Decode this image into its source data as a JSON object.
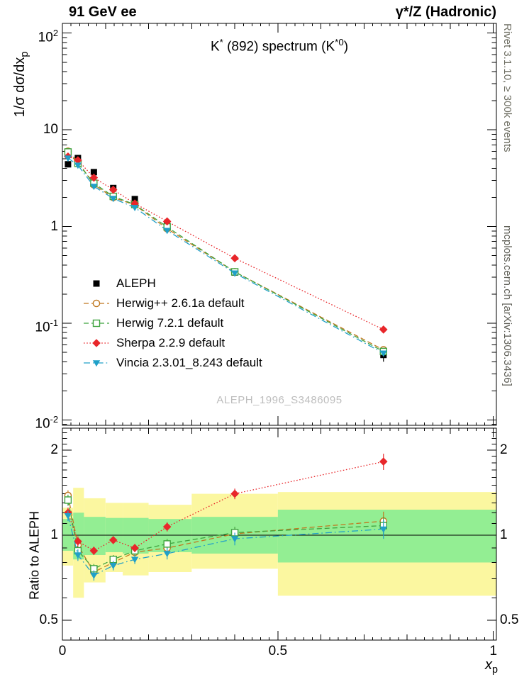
{
  "header": {
    "left": "91 GeV ee",
    "right": "γ*/Z (Hadronic)"
  },
  "panel_title": {
    "pre": "K",
    "sup1": "*",
    "mid": " (892) spectrum (K",
    "sup2": "*0",
    "post": ")"
  },
  "watermark": "ALEPH_1996_S3486095",
  "side_texts": {
    "top": "Rivet 3.1.10, ≥ 300k events",
    "bottom": "mcplots.cern.ch [arXiv:1306.3436]"
  },
  "axes": {
    "y_top_label": {
      "pre": "1/σ dσ/dx",
      "sub": "p"
    },
    "y_bottom_label": "Ratio to ALEPH",
    "x_label": {
      "pre": "x",
      "sub": "p"
    },
    "x_ticks": [
      {
        "v": 0,
        "label": "0"
      },
      {
        "v": 0.5,
        "label": "0.5"
      },
      {
        "v": 1,
        "label": "1"
      }
    ],
    "y_top_ticks": [
      {
        "v": 100,
        "base": "10",
        "exp": "2"
      },
      {
        "v": 10,
        "base": "10",
        "exp": ""
      },
      {
        "v": 1,
        "base": "1",
        "exp": ""
      },
      {
        "v": 0.1,
        "base": "10",
        "exp": "-1"
      },
      {
        "v": 0.01,
        "base": "10",
        "exp": "-2"
      }
    ],
    "y_bottom_ticks": [
      {
        "v": 2,
        "label": "2"
      },
      {
        "v": 1,
        "label": "1"
      },
      {
        "v": 0.5,
        "label": "0.5"
      }
    ]
  },
  "chart_data": [
    {
      "id": "spectrum",
      "type": "line",
      "title": "K*(892) spectrum (K*0)",
      "xlabel": "x_p",
      "ylabel": "1/σ dσ/dx_p",
      "x_range": [
        0,
        1.007
      ],
      "y_range": [
        0.0088,
        126
      ],
      "y_scale": "log",
      "legend_position": "middle-left",
      "grid": false,
      "x": [
        0.013,
        0.036,
        0.073,
        0.118,
        0.168,
        0.243,
        0.4,
        0.745
      ],
      "series": [
        {
          "name": "ALEPH",
          "marker": "square-filled",
          "color": "#000000",
          "line": "none",
          "values": [
            4.4,
            5.1,
            3.65,
            2.5,
            1.92,
            1.06,
            0.335,
            0.047
          ],
          "yerr": [
            0.3,
            0.25,
            0.18,
            0.12,
            0.1,
            0.07,
            0.03,
            0.007
          ]
        },
        {
          "name": "Herwig++ 2.6.1a default",
          "marker": "circle-open",
          "color": "#c07820",
          "line": "dash",
          "values": [
            6.0,
            4.7,
            2.7,
            2.0,
            1.67,
            0.95,
            0.34,
            0.053
          ]
        },
        {
          "name": "Herwig 7.2.1 default",
          "marker": "square-open",
          "color": "#3fa33f",
          "line": "dash",
          "values": [
            5.9,
            4.5,
            2.8,
            2.05,
            1.69,
            0.99,
            0.34,
            0.051
          ]
        },
        {
          "name": "Sherpa 2.2.9 default",
          "marker": "diamond-filled",
          "color": "#e8262a",
          "line": "dot",
          "values": [
            5.3,
            4.85,
            3.2,
            2.4,
            1.73,
            1.13,
            0.47,
            0.086
          ]
        },
        {
          "name": "Vincia 2.3.01_8.243 default",
          "marker": "triangle-down-filled",
          "color": "#20a0c8",
          "line": "dashdot",
          "values": [
            5.1,
            4.3,
            2.6,
            1.95,
            1.57,
            0.91,
            0.33,
            0.049
          ]
        }
      ]
    },
    {
      "id": "ratio",
      "type": "line",
      "ylabel": "Ratio to ALEPH",
      "x_range": [
        0,
        1.007
      ],
      "y_range": [
        0.425,
        2.39
      ],
      "y_scale": "log",
      "reference_line": 1,
      "x": [
        0.013,
        0.036,
        0.073,
        0.118,
        0.168,
        0.243,
        0.4,
        0.745
      ],
      "series": [
        {
          "name": "Herwig++ 2.6.1a default",
          "marker": "circle-open",
          "color": "#c07820",
          "line": "dash",
          "values": [
            1.38,
            0.92,
            0.74,
            0.8,
            0.87,
            0.9,
            1.01,
            1.12
          ],
          "yerr": [
            0.06,
            0.04,
            0.03,
            0.03,
            0.03,
            0.04,
            0.05,
            0.09
          ]
        },
        {
          "name": "Herwig 7.2.1 default",
          "marker": "square-open",
          "color": "#3fa33f",
          "line": "dash",
          "values": [
            1.33,
            0.88,
            0.76,
            0.82,
            0.88,
            0.93,
            1.02,
            1.08
          ],
          "yerr": [
            0.06,
            0.04,
            0.03,
            0.03,
            0.03,
            0.04,
            0.05,
            0.08
          ]
        },
        {
          "name": "Sherpa 2.2.9 default",
          "marker": "diamond-filled",
          "color": "#e8262a",
          "line": "dot",
          "values": [
            1.2,
            0.95,
            0.88,
            0.96,
            0.9,
            1.07,
            1.4,
            1.82
          ],
          "yerr": [
            0.05,
            0.04,
            0.03,
            0.03,
            0.03,
            0.04,
            0.06,
            0.12
          ]
        },
        {
          "name": "Vincia 2.3.01_8.243 default",
          "marker": "triangle-down-filled",
          "color": "#20a0c8",
          "line": "dashdot",
          "values": [
            1.17,
            0.85,
            0.72,
            0.78,
            0.82,
            0.86,
            0.97,
            1.05
          ],
          "yerr": [
            0.05,
            0.04,
            0.03,
            0.03,
            0.03,
            0.04,
            0.05,
            0.08
          ]
        }
      ],
      "bands": {
        "edges": [
          0,
          0.025,
          0.05,
          0.1,
          0.14,
          0.2,
          0.3,
          0.5,
          1.007
        ],
        "yellow": [
          [
            0.78,
            1.25
          ],
          [
            0.6,
            1.47
          ],
          [
            0.68,
            1.35
          ],
          [
            0.74,
            1.3
          ],
          [
            0.72,
            1.3
          ],
          [
            0.74,
            1.28
          ],
          [
            0.76,
            1.4
          ],
          [
            0.61,
            1.42
          ]
        ],
        "green": [
          [
            0.88,
            1.14
          ],
          [
            0.82,
            1.2
          ],
          [
            0.85,
            1.16
          ],
          [
            0.87,
            1.15
          ],
          [
            0.86,
            1.15
          ],
          [
            0.87,
            1.14
          ],
          [
            0.86,
            1.16
          ],
          [
            0.8,
            1.23
          ]
        ],
        "colors": {
          "yellow": "#fbf7a0",
          "green": "#93ee93"
        }
      }
    }
  ]
}
